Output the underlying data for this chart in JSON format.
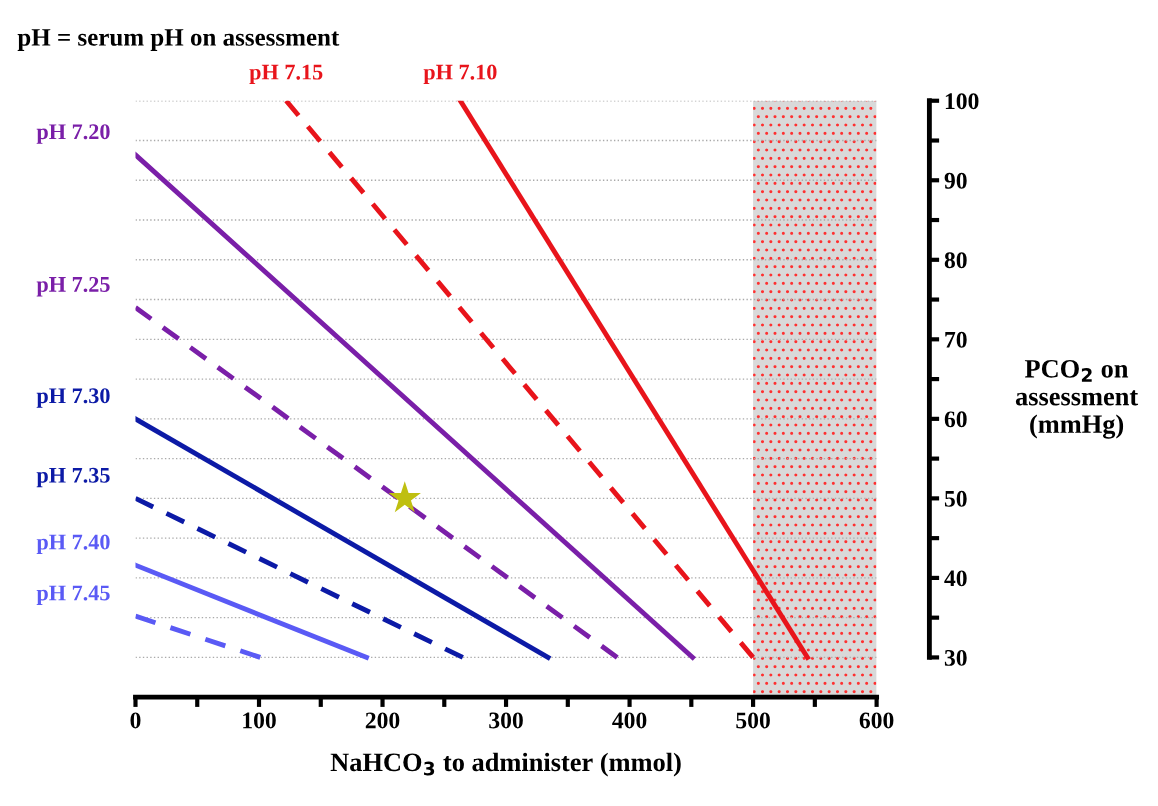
{
  "chart_data": {
    "type": "line",
    "title": "pH = serum pH on assessment",
    "xlabel": "NaHCO$_{3}$ to administer (mmol)",
    "ylabel": "PCO$_{2}$ on assessment (mmHg)",
    "xlim": [
      0,
      600
    ],
    "ylim": [
      25,
      100
    ],
    "xticks": [
      0,
      {
        "value": 50,
        "label": null
      },
      100,
      {
        "value": 150,
        "label": null
      },
      200,
      {
        "value": 250,
        "label": null
      },
      300,
      {
        "value": 350,
        "label": null
      },
      400,
      {
        "value": 450,
        "label": null
      },
      500,
      {
        "value": 550,
        "label": null
      },
      600
    ],
    "yticks": [
      30,
      {
        "value": 35,
        "label": null
      },
      40,
      {
        "value": 45,
        "label": null
      },
      50,
      {
        "value": 55,
        "label": null
      },
      60,
      {
        "value": 65,
        "label": null
      },
      70,
      {
        "value": 75,
        "label": null
      },
      80,
      {
        "value": 85,
        "label": null
      },
      90,
      {
        "value": 95,
        "label": null
      },
      100
    ],
    "grid": "y",
    "bands": [
      {
        "axis": "x",
        "from": 500,
        "to": 600,
        "color": "#d9d9d9"
      }
    ],
    "series": [
      {
        "name": "pH 7.10",
        "color": "#e8141b",
        "line_style": "solid",
        "x": [
          263,
          544
        ],
        "values": [
          100,
          30
        ]
      },
      {
        "name": "pH 7.15",
        "color": "#e8141b",
        "line_style": "dashed",
        "x": [
          122,
          500
        ],
        "values": [
          100,
          30
        ]
      },
      {
        "name": "pH 7.20",
        "color": "#7a1fa8",
        "line_style": "solid",
        "x": [
          0,
          451
        ],
        "values": [
          93.2,
          30
        ]
      },
      {
        "name": "pH 7.25",
        "color": "#7a1fa8",
        "line_style": "dashed",
        "x": [
          0,
          390
        ],
        "values": [
          74,
          30
        ]
      },
      {
        "name": "pH 7.30",
        "color": "#0c1aa6",
        "line_style": "solid",
        "x": [
          0,
          334
        ],
        "values": [
          60,
          30
        ]
      },
      {
        "name": "pH 7.35",
        "color": "#0c1aa6",
        "line_style": "dashed",
        "x": [
          0,
          265
        ],
        "values": [
          50,
          30
        ]
      },
      {
        "name": "pH 7.40",
        "color": "#5a5af5",
        "line_style": "solid",
        "x": [
          0,
          187
        ],
        "values": [
          41.6,
          30
        ]
      },
      {
        "name": "pH 7.45",
        "color": "#5a5af5",
        "line_style": "dashed",
        "x": [
          0,
          101
        ],
        "values": [
          35.2,
          30
        ]
      },
      {
        "type": "scatter",
        "color": "#bfbf10",
        "marker": "star",
        "x": [
          218
        ],
        "values": [
          50
        ]
      }
    ]
  }
}
